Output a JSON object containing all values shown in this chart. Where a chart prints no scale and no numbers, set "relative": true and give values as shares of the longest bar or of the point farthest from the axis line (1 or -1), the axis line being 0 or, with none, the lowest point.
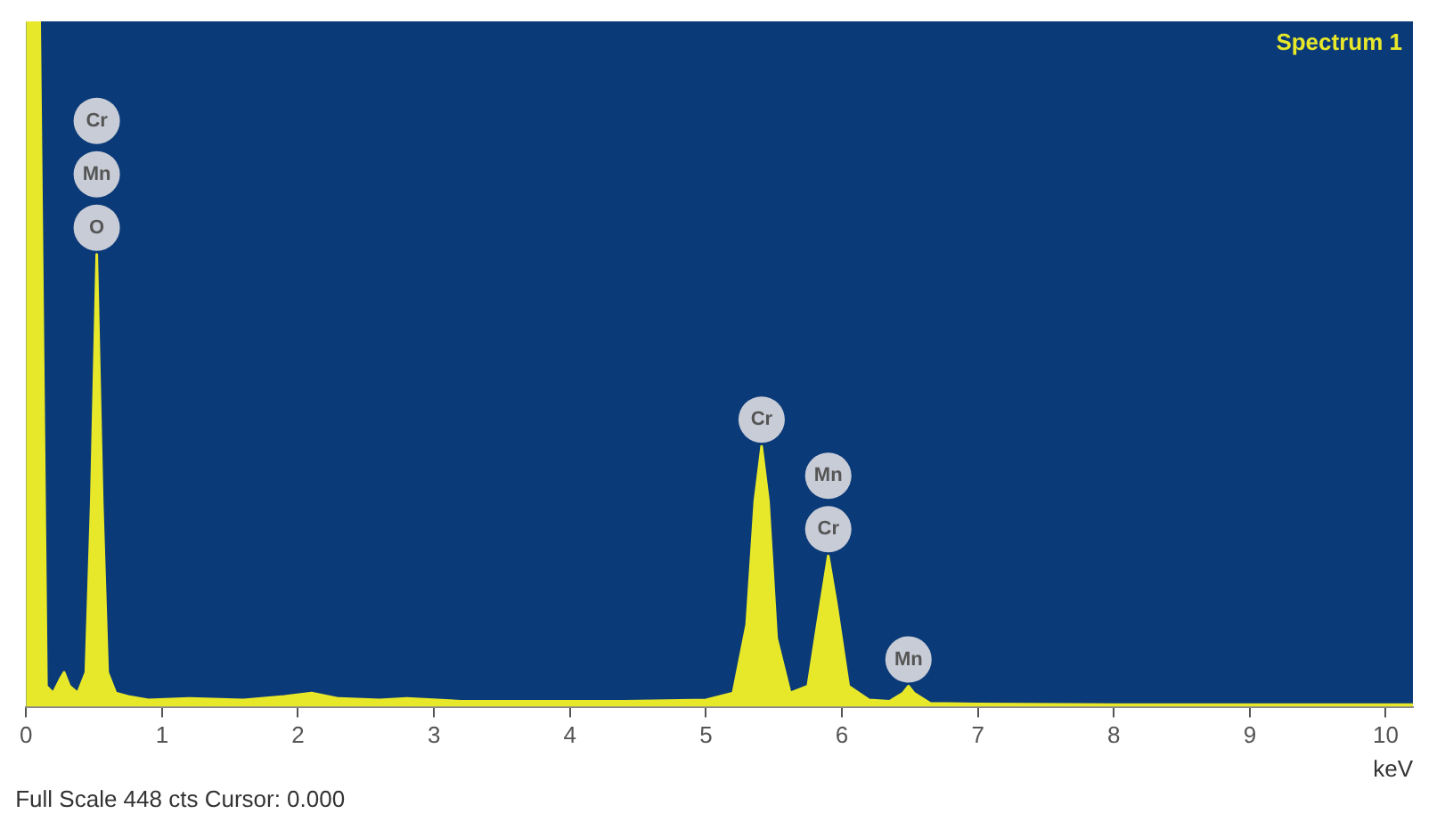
{
  "chart_data": {
    "type": "area",
    "relative": true,
    "x": [
      0,
      0.05,
      0.1,
      0.15,
      0.2,
      0.25,
      0.28,
      0.32,
      0.38,
      0.44,
      0.48,
      0.52,
      0.56,
      0.6,
      0.66,
      0.75,
      0.9,
      1.2,
      1.6,
      1.9,
      2.1,
      2.3,
      2.6,
      2.8,
      3.2,
      3.8,
      4.4,
      5.0,
      5.2,
      5.3,
      5.36,
      5.41,
      5.46,
      5.52,
      5.62,
      5.75,
      5.82,
      5.9,
      5.96,
      6.05,
      6.2,
      6.35,
      6.45,
      6.49,
      6.53,
      6.65,
      7,
      8,
      9,
      10,
      10.2
    ],
    "series": [
      {
        "name": "Spectrum 1",
        "color": "#e8e82a",
        "values": [
          1,
          1,
          1,
          0.03,
          0.02,
          0.04,
          0.05,
          0.03,
          0.02,
          0.05,
          0.3,
          0.66,
          0.3,
          0.05,
          0.02,
          0.015,
          0.01,
          0.012,
          0.01,
          0.015,
          0.02,
          0.012,
          0.01,
          0.012,
          0.008,
          0.008,
          0.008,
          0.01,
          0.02,
          0.12,
          0.3,
          0.38,
          0.3,
          0.1,
          0.02,
          0.03,
          0.12,
          0.22,
          0.15,
          0.03,
          0.01,
          0.008,
          0.02,
          0.03,
          0.02,
          0.005,
          0.004,
          0.003,
          0.003,
          0.003,
          0.003
        ]
      }
    ],
    "xlim": [
      0,
      10.2
    ],
    "xticks": [
      0,
      1,
      2,
      3,
      4,
      5,
      6,
      7,
      8,
      9,
      10
    ],
    "xlabel": "keV",
    "legend": "top right",
    "grid": false,
    "annotations": [
      "Full Scale 448 cts Cursor: 0.000",
      {
        "text": "O",
        "x": 0.52,
        "y": 0.66
      },
      "Mn",
      "Cr",
      {
        "text": "Cr",
        "x": 5.41,
        "y": 0.38
      },
      {
        "text": "Cr",
        "x": 5.9,
        "y": 0.22
      },
      "Mn",
      {
        "text": "Mn",
        "x": 6.49,
        "y": 0.03
      }
    ]
  }
}
